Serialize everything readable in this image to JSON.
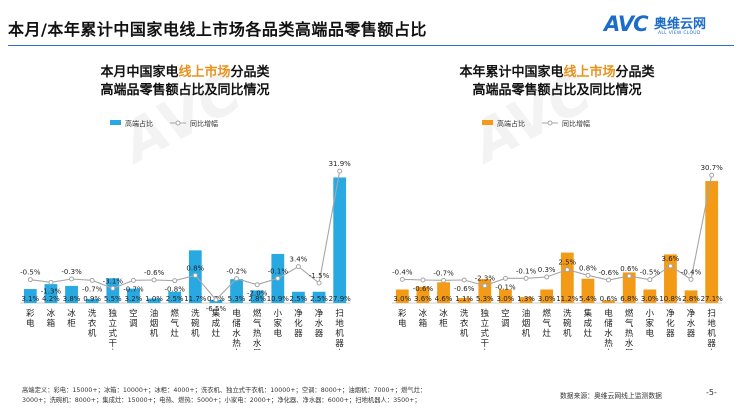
{
  "page": {
    "title": "本月/本年累计中国家电线上市场各品类高端品零售额占比",
    "footnote_line1": "高端定义：彩电：15000+；冰箱：10000+；冰柜：4000+；洗衣机、独立式干衣机：10000+；空调：8000+；油烟机：7000+；燃气灶：",
    "footnote_line2": "3000+；洗碗机：8000+；集成灶：15000+；电热、燃热：5000+；小家电：2000+；净化器、净水器：6000+；扫地机器人：3500+；",
    "source": "数据来源：奥维云网线上监测数据",
    "page_number": "-5-"
  },
  "logo": {
    "mark": "AVC",
    "name_cn": "奥维云网",
    "name_en": "ALL VIEW CLOUD"
  },
  "colors": {
    "bar_monthly": "#29a9e1",
    "bar_yearly": "#f39a17",
    "yoy_line": "#a6a6a6",
    "title_highlight": "#e8931e",
    "header_rule": "#2b6ed0"
  },
  "chart_data": [
    {
      "type": "bar",
      "title_pre": "本月中国家电",
      "title_highlight": "线上市场",
      "title_post": "分品类",
      "title_line2": "高端品零售额占比及同比情况",
      "categories": [
        "彩电",
        "冰箱",
        "冰柜",
        "洗衣机",
        "独立式干衣机",
        "空调",
        "油烟机",
        "燃气灶",
        "洗碗机",
        "集成灶",
        "电储水热水器",
        "燃气热水器",
        "小家电",
        "净化器",
        "净水器",
        "扫地机器人"
      ],
      "series": [
        {
          "name": "高端占比",
          "kind": "bar",
          "values": [
            3.1,
            4.2,
            3.8,
            0.9,
            5.5,
            3.2,
            1.0,
            2.5,
            11.7,
            0.7,
            5.3,
            2.8,
            10.9,
            2.5,
            2.5,
            27.9
          ],
          "labels": [
            "3.1%",
            "4.2%",
            "3.8%",
            "0.9%",
            "5.5%",
            "3.2%",
            "1.0%",
            "2.5%",
            "11.7%",
            "0.7%",
            "5.3%",
            "2.8%",
            "10.9%",
            "2.5%",
            "2.5%",
            "27.9%"
          ]
        },
        {
          "name": "同比增幅",
          "kind": "line",
          "values": [
            -0.5,
            -1.3,
            -0.3,
            -0.7,
            -3.1,
            -0.7,
            -0.6,
            -0.8,
            0.8,
            -6.5,
            -0.2,
            -2.0,
            -0.1,
            3.4,
            -1.5,
            31.9
          ],
          "labels": [
            "-0.5%",
            "-1.3%",
            "-0.3%",
            "-0.7%",
            "-3.1%",
            "-0.7%",
            "-0.6%",
            "-0.8%",
            "0.8%",
            "-6.5%",
            "-0.2%",
            "-2.0%",
            "-0.1%",
            "3.4%",
            "-1.5%",
            "31.9%"
          ]
        }
      ],
      "ylim_bar": [
        0,
        30
      ],
      "ylim_line": [
        -12,
        35
      ],
      "legend_position": "top-left"
    },
    {
      "type": "bar",
      "title_pre": "本年累计中国家电",
      "title_highlight": "线上市场",
      "title_post": "分品类",
      "title_line2": "高端品零售额占比及同比情况",
      "categories": [
        "彩电",
        "冰箱",
        "冰柜",
        "洗衣机",
        "独立式干衣机",
        "空调",
        "油烟机",
        "燃气灶",
        "洗碗机",
        "集成灶",
        "电储水热水器",
        "燃气热水器",
        "小家电",
        "净化器",
        "净水器",
        "扫地机器人"
      ],
      "series": [
        {
          "name": "高端占比",
          "kind": "bar",
          "values": [
            3.0,
            3.6,
            4.6,
            1.1,
            5.3,
            3.0,
            1.3,
            3.0,
            11.2,
            5.4,
            0.6,
            6.8,
            3.0,
            10.8,
            2.8,
            27.1
          ],
          "labels": [
            "3.0%",
            "3.6%",
            "4.6%",
            "1.1%",
            "5.3%",
            "3.0%",
            "1.3%",
            "3.0%",
            "11.2%",
            "5.4%",
            "0.6%",
            "6.8%",
            "3.0%",
            "10.8%",
            "2.8%",
            "27.1%"
          ]
        },
        {
          "name": "同比增幅",
          "kind": "line",
          "values": [
            -0.4,
            -0.6,
            -0.7,
            -0.6,
            -2.3,
            -0.1,
            -0.1,
            0.3,
            2.5,
            0.8,
            -0.6,
            0.6,
            -0.5,
            3.6,
            -0.4,
            30.7
          ],
          "labels": [
            "-0.4%",
            "-0.6%",
            "-0.7%",
            "-0.6%",
            "-2.3%",
            "-0.1%",
            "-0.1%",
            "0.3%",
            "2.5%",
            "0.8%",
            "-0.6%",
            "0.6%",
            "-0.5%",
            "3.6%",
            "-0.4%",
            "30.7%"
          ]
        }
      ],
      "ylim_bar": [
        0,
        30
      ],
      "ylim_line": [
        -12,
        35
      ],
      "legend_position": "top-left"
    }
  ]
}
